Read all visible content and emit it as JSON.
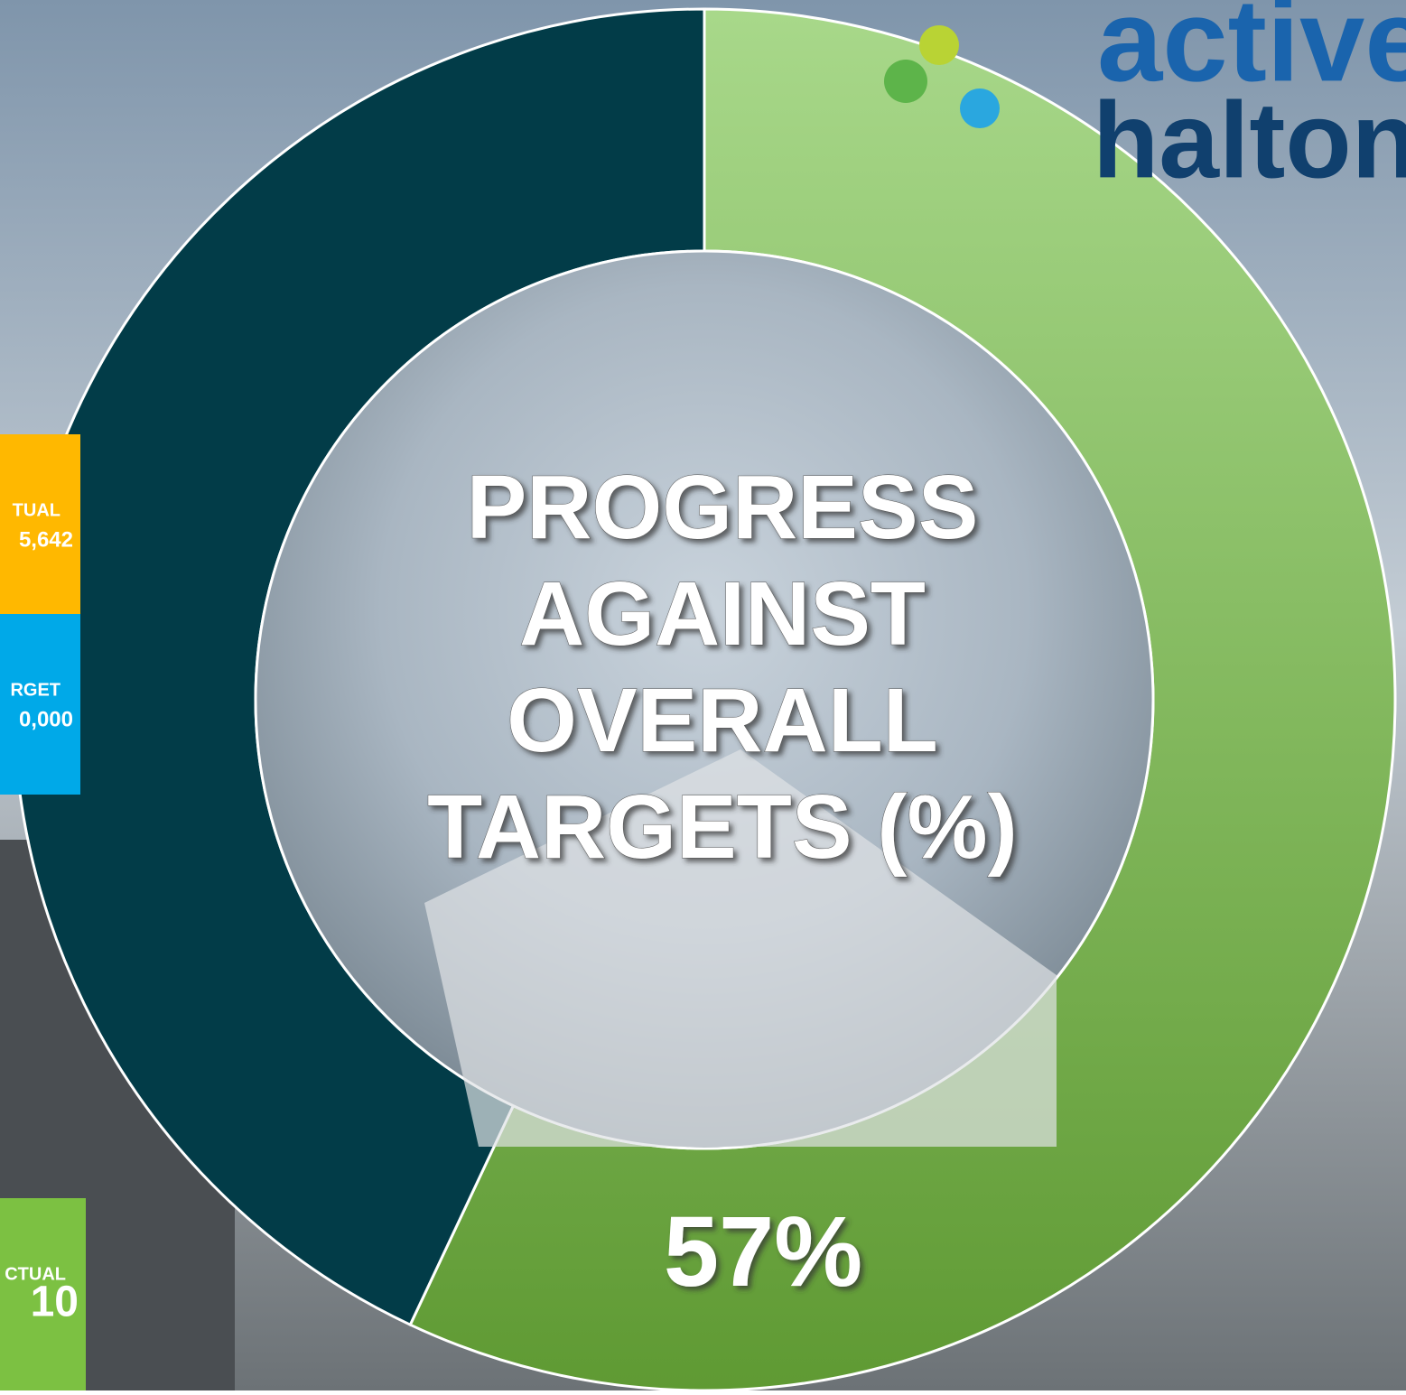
{
  "chart_data": {
    "type": "donut",
    "title": "PROGRESS AGAINST OVERALL TARGETS (%)",
    "values": [
      57,
      43
    ],
    "value_labels": [
      "57%",
      null
    ],
    "colors": [
      "#7cbf4a",
      "#023c48"
    ]
  },
  "logo": {
    "line1": "active",
    "line2": "halton"
  },
  "side_panels": [
    {
      "label": "TUAL",
      "value": "5,642",
      "color": "#ffb800"
    },
    {
      "label": "RGET",
      "value": "0,000",
      "color": "#00a9e8"
    },
    {
      "label": "CTUAL",
      "value": "10",
      "color": "#7cc142"
    }
  ]
}
